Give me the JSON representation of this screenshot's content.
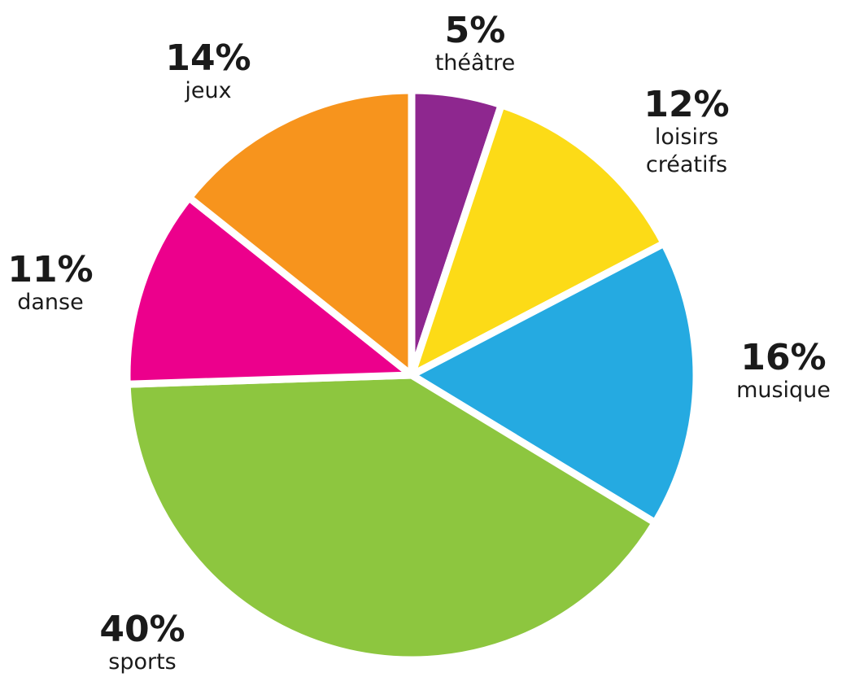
{
  "chart_data": {
    "type": "pie",
    "slices": [
      {
        "label": "théâtre",
        "value": 5,
        "value_label": "5%",
        "color": "#8e278f"
      },
      {
        "label": "loisirs créatifs",
        "label_lines": [
          "loisirs",
          "créatifs"
        ],
        "value": 12,
        "value_label": "12%",
        "color": "#fcdb17"
      },
      {
        "label": "musique",
        "value": 16,
        "value_label": "16%",
        "color": "#25aae1"
      },
      {
        "label": "sports",
        "value": 40,
        "value_label": "40%",
        "color": "#8dc63f"
      },
      {
        "label": "danse",
        "value": 11,
        "value_label": "11%",
        "color": "#ec008c"
      },
      {
        "label": "jeux",
        "value": 14,
        "value_label": "14%",
        "color": "#f7941d"
      }
    ],
    "start": "top",
    "direction": "clockwise"
  }
}
